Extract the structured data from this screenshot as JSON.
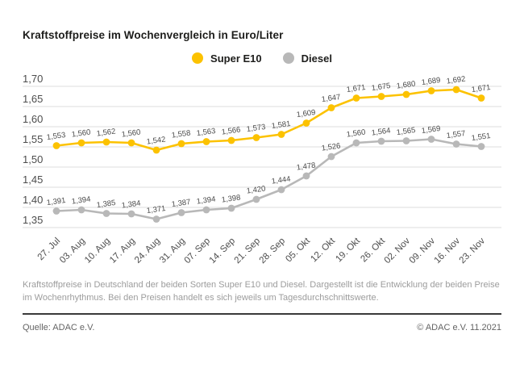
{
  "title": "Kraftstoffpreise im Wochenvergleich in Euro/Liter",
  "legend": {
    "items": [
      {
        "label": "Super E10",
        "color": "#fcc200"
      },
      {
        "label": "Diesel",
        "color": "#b8b8b8"
      }
    ]
  },
  "chart_data": {
    "type": "line",
    "title": "Kraftstoffpreise im Wochenvergleich in Euro/Liter",
    "xlabel": "",
    "ylabel": "Euro/Liter",
    "ylim": [
      1.35,
      1.7
    ],
    "grid": true,
    "legend_position": "top-center",
    "value_labels": true,
    "ytick_labels": [
      "1,70",
      "1,65",
      "1,60",
      "1,55",
      "1,50",
      "1,45",
      "1,40",
      "1,35"
    ],
    "ytick_values": [
      1.7,
      1.65,
      1.6,
      1.55,
      1.5,
      1.45,
      1.4,
      1.35
    ],
    "categories": [
      "27. Jul",
      "03. Aug",
      "10. Aug",
      "17. Aug",
      "24. Aug",
      "31. Aug",
      "07. Sep",
      "14. Sep",
      "21. Sep",
      "28. Sep",
      "05. Okt",
      "12. Okt",
      "19. Okt",
      "26. Okt",
      "02. Nov",
      "09. Nov",
      "16. Nov",
      "23. Nov"
    ],
    "series": [
      {
        "name": "Super E10",
        "color": "#fcc200",
        "values": [
          1.553,
          1.56,
          1.562,
          1.56,
          1.542,
          1.558,
          1.563,
          1.566,
          1.573,
          1.581,
          1.609,
          1.647,
          1.671,
          1.675,
          1.68,
          1.689,
          1.692,
          1.671
        ]
      },
      {
        "name": "Diesel",
        "color": "#b8b8b8",
        "values": [
          1.391,
          1.394,
          1.385,
          1.384,
          1.371,
          1.387,
          1.394,
          1.398,
          1.42,
          1.444,
          1.478,
          1.526,
          1.56,
          1.564,
          1.565,
          1.569,
          1.557,
          1.551
        ]
      }
    ],
    "colors": {
      "gridline": "#dedede",
      "axis_label": "#4d4d4d",
      "value_label": "#4a4a4a"
    }
  },
  "description": "Kraftstoffpreise in Deutschland der beiden Sorten Super E10 und Diesel. Dargestellt ist die Entwicklung der beiden Preise im Wochenrhythmus. Bei den Preisen handelt es sich jeweils um Tagesdurchschnittswerte.",
  "footer": {
    "source": "Quelle: ADAC e.V.",
    "copyright": "© ADAC e.V. 11.2021"
  }
}
